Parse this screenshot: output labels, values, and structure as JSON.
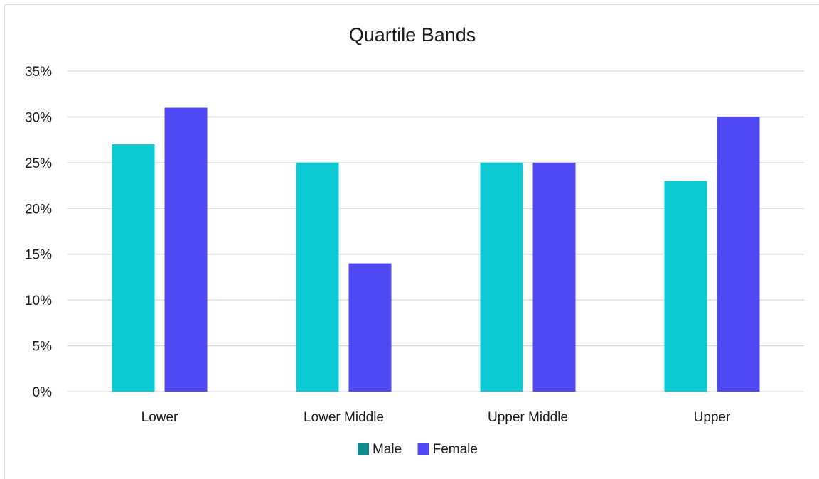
{
  "chart_data": {
    "type": "bar",
    "title": "Quartile Bands",
    "xlabel": "",
    "ylabel": "",
    "categories": [
      "Lower",
      "Lower Middle",
      "Upper Middle",
      "Upper"
    ],
    "series": [
      {
        "name": "Male",
        "values": [
          27,
          25,
          25,
          23
        ],
        "color": "#0ac9d2",
        "legend_color": "#128a8f"
      },
      {
        "name": "Female",
        "values": [
          31,
          14,
          25,
          30
        ],
        "color": "#5048f2",
        "legend_color": "#5048f2"
      }
    ],
    "ylim": [
      0,
      35
    ],
    "yticks": [
      "0%",
      "5%",
      "10%",
      "15%",
      "20%",
      "25%",
      "30%",
      "35%"
    ],
    "grid": true,
    "legend_position": "bottom",
    "colors": {
      "grid": "#d9d9d9",
      "text": "#1a1a1a"
    }
  }
}
